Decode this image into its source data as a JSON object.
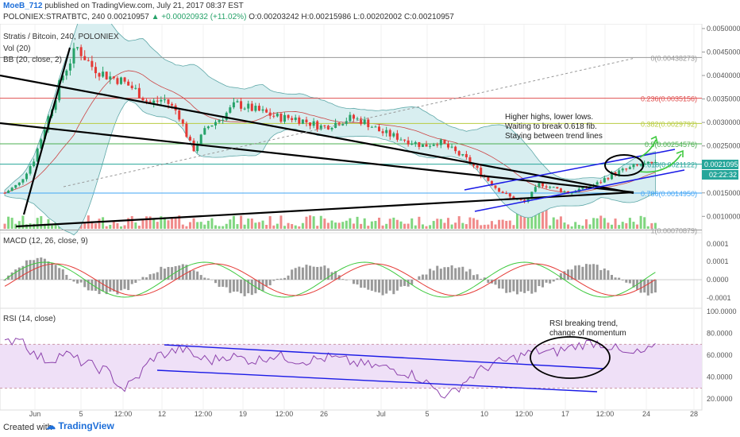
{
  "header": {
    "author": "MoeB_712",
    "published": "published on TradingView.com, July 21, 2017 08:37 EST",
    "symbol": "POLONIEX:STRATBTC, 240",
    "open": "0.00210957",
    "change": "+0.00020932 (+11.02%)",
    "o": "O:0.00203242",
    "h": "H:0.00215986",
    "l": "L:0.00202002",
    "c": "C:0.00210957"
  },
  "panes": {
    "main_title": "Stratis / Bitcoin, 240, POLONIEX",
    "vol": "Vol (20)",
    "bb": "BB (20, close, 2)",
    "macd": "MACD (12, 26, close, 9)",
    "rsi": "RSI (14, close)"
  },
  "notes": {
    "price_note": [
      "Higher highs, lower lows.",
      "Waiting to break 0.618 fib.",
      "Staying between trend lines"
    ],
    "rsi_note": [
      "RSI breaking trend,",
      "change of momentum"
    ]
  },
  "price_tags": {
    "last": "0.00210957",
    "countdown": "02:22:32"
  },
  "footer": {
    "created": "Created with",
    "brand": "TradingView"
  },
  "colors": {
    "fib0": "#999999",
    "fib236": "#e05050",
    "fib382": "#b8cc40",
    "fib5": "#4caf50",
    "fib618": "#26a69a",
    "fib786": "#42a5f5",
    "fib1": "#999999",
    "up": "#26a269",
    "down": "#e53935",
    "trend": "#000000",
    "channel": "#1a1ae6",
    "bb_fill": "#d8eef0",
    "rsi_band": "#efe0f7"
  },
  "chart_data": {
    "type": "candlestick",
    "pair": "STRATBTC",
    "timeframe": "240",
    "x_ticks": [
      "Jun",
      "5",
      "12:00",
      "12",
      "12:00",
      "19",
      "12:00",
      "26",
      "Jul",
      "5",
      "10",
      "12:00",
      "17",
      "12:00",
      "24",
      "28"
    ],
    "price_axis": {
      "ticks": [
        "0.00500000",
        "0.00450000",
        "0.00400000",
        "0.00350000",
        "0.00300000",
        "0.00250000",
        "0.00150000",
        "0.00100000"
      ],
      "ylim": [
        0.00065,
        0.0051
      ]
    },
    "fib_levels": [
      {
        "label": "0(0.00438273)",
        "ratio": 0,
        "value": 0.00438273
      },
      {
        "label": "0.236(0.0035156)",
        "ratio": 0.236,
        "value": 0.0035156
      },
      {
        "label": "0.382(0.0029792)",
        "ratio": 0.382,
        "value": 0.0029792
      },
      {
        "label": "0.5(0.00254576)",
        "ratio": 0.5,
        "value": 0.00254576
      },
      {
        "label": "0.618(0.0021122)",
        "ratio": 0.618,
        "value": 0.0021122
      },
      {
        "label": "0.786(0.0014950)",
        "ratio": 0.786,
        "value": 0.001495
      },
      {
        "label": "1(0.00070879)",
        "ratio": 1,
        "value": 0.00070879
      }
    ],
    "price_path": [
      0.0015,
      0.0017,
      0.0022,
      0.0031,
      0.004,
      0.0046,
      0.0042,
      0.004,
      0.0039,
      0.0037,
      0.0034,
      0.0035,
      0.0032,
      0.0024,
      0.0029,
      0.0031,
      0.0034,
      0.0033,
      0.0032,
      0.0031,
      0.0031,
      0.003,
      0.0029,
      0.003,
      0.0031,
      0.003,
      0.0028,
      0.0027,
      0.0026,
      0.0025,
      0.0026,
      0.0024,
      0.0022,
      0.0019,
      0.0016,
      0.0014,
      0.0013,
      0.0017,
      0.0016,
      0.0015,
      0.0016,
      0.0017,
      0.0019,
      0.002,
      0.0021,
      0.0021
    ],
    "macd_axis": {
      "ticks": [
        "0.0001",
        "0.0001",
        "0.0000",
        "-0.0001"
      ]
    },
    "rsi_axis": {
      "ticks": [
        "100.0000",
        "80.0000",
        "60.0000",
        "40.0000",
        "20.0000"
      ],
      "ylim": [
        10,
        100
      ],
      "band": [
        30,
        70
      ]
    },
    "rsi_path": [
      70,
      78,
      60,
      55,
      62,
      55,
      50,
      45,
      28,
      40,
      58,
      62,
      66,
      58,
      55,
      60,
      57,
      55,
      60,
      58,
      55,
      56,
      58,
      55,
      52,
      50,
      48,
      45,
      40,
      30,
      22,
      35,
      45,
      52,
      55,
      60,
      64,
      62,
      66,
      70,
      72,
      68,
      60,
      62,
      66
    ]
  }
}
